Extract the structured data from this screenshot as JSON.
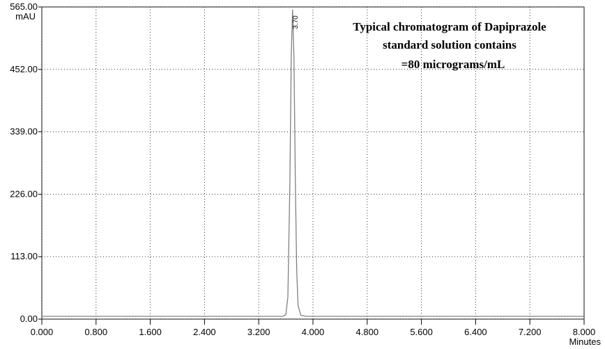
{
  "chart_data": {
    "type": "line",
    "title": [
      "Typical chromatogram of Dapiprazole",
      "standard solution contains",
      "=80 micrograms/mL"
    ],
    "y_label": "mAU",
    "x_label": "Minutes",
    "peak_label": "3.70",
    "x": [
      0,
      3.55,
      3.6,
      3.63,
      3.66,
      3.68,
      3.7,
      3.72,
      3.74,
      3.76,
      3.78,
      3.82,
      3.9,
      8.0
    ],
    "series": [
      {
        "name": "signal",
        "color": "#808080",
        "values": [
          5,
          5,
          8,
          40,
          250,
          480,
          560,
          470,
          250,
          90,
          25,
          7,
          5,
          5
        ]
      }
    ],
    "xlim": [
      0,
      8
    ],
    "ylim": [
      0,
      565
    ],
    "xticks": [
      {
        "value": 0,
        "label": "0.000"
      },
      {
        "value": 0.8,
        "label": "0.800"
      },
      {
        "value": 1.6,
        "label": "1.600"
      },
      {
        "value": 2.4,
        "label": "2.400"
      },
      {
        "value": 3.2,
        "label": "3.200"
      },
      {
        "value": 4.0,
        "label": "4.000"
      },
      {
        "value": 4.8,
        "label": "4.800"
      },
      {
        "value": 5.6,
        "label": "5.600"
      },
      {
        "value": 6.4,
        "label": "6.400"
      },
      {
        "value": 7.2,
        "label": "7.200"
      },
      {
        "value": 8.0,
        "label": "8.000"
      }
    ],
    "yticks": [
      {
        "value": 0,
        "label": "0.00"
      },
      {
        "value": 113,
        "label": "113.00"
      },
      {
        "value": 226,
        "label": "226.00"
      },
      {
        "value": 339,
        "label": "339.00"
      },
      {
        "value": 452,
        "label": "452.00"
      },
      {
        "value": 565,
        "label": "565.00"
      }
    ],
    "grid": true
  }
}
